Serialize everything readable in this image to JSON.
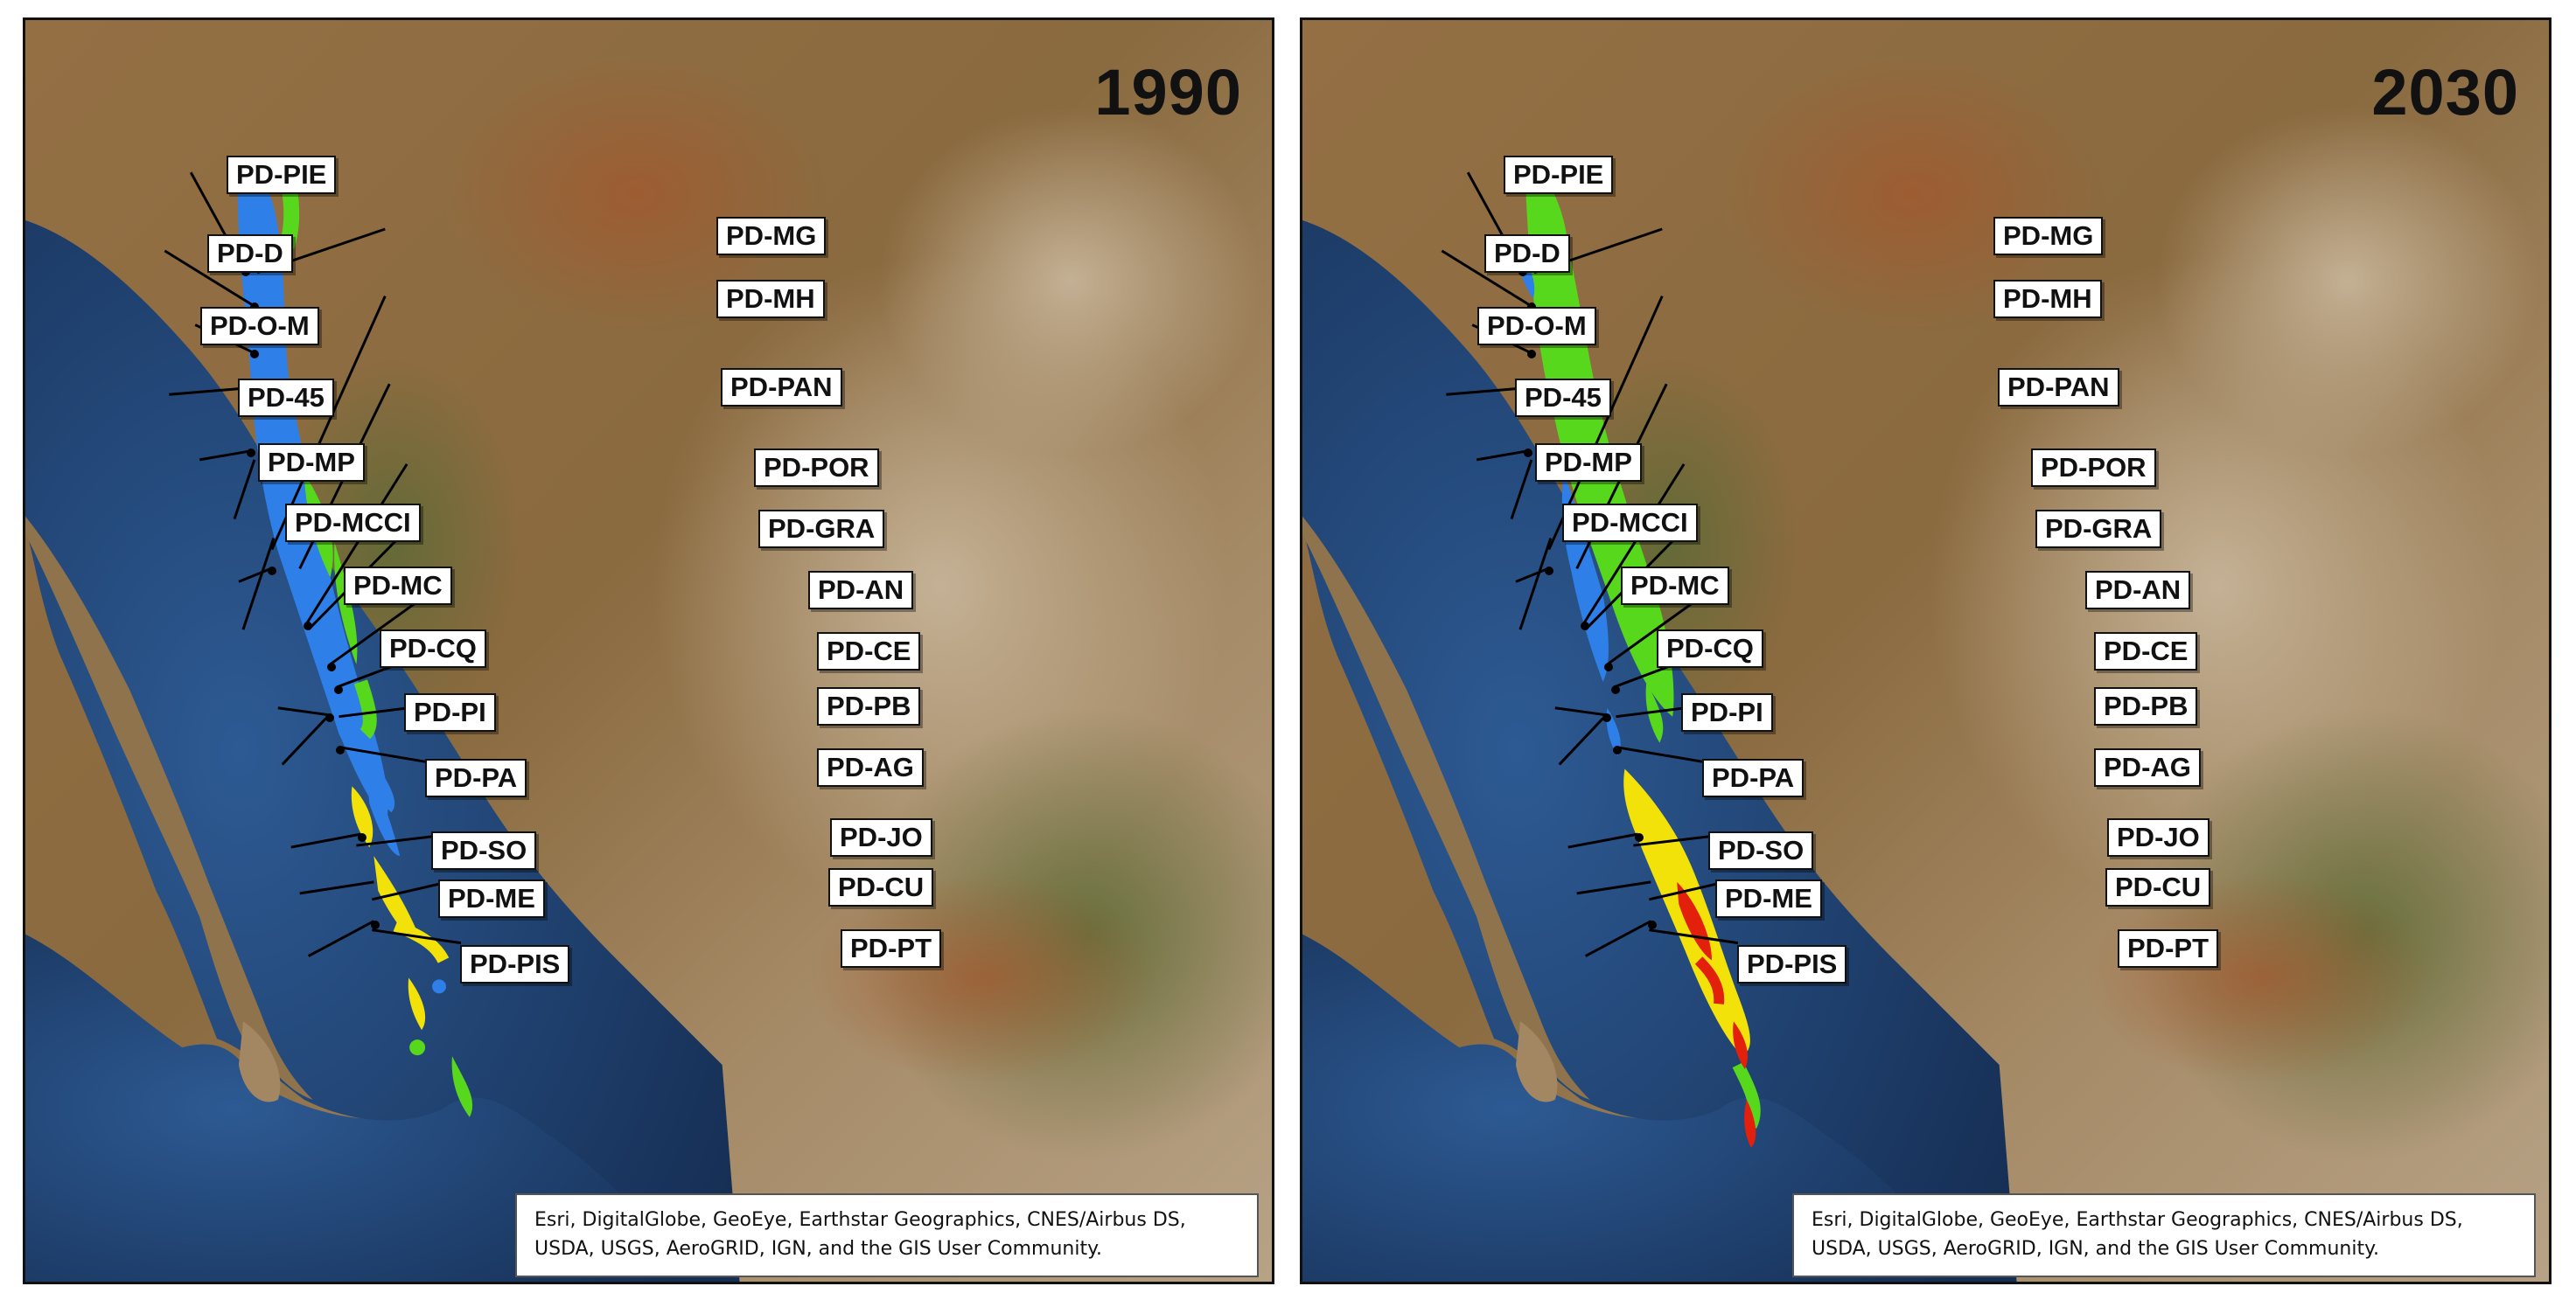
{
  "colors": {
    "ocean": "#1d3c6b",
    "land": "#8a6a40",
    "blue_class": "#2f7fe8",
    "green_class": "#58d81c",
    "yellow_class": "#f2e20a",
    "red_class": "#e3200c",
    "leader_line": "#000000"
  },
  "panels": [
    {
      "year": "1990"
    },
    {
      "year": "2030"
    }
  ],
  "attribution": {
    "line1": "Esri, DigitalGlobe, GeoEye, Earthstar Geographics, CNES/Airbus DS,",
    "line2": "USDA, USGS, AeroGRID, IGN, and the GIS User Community."
  },
  "sites": [
    "PD-PIE",
    "PD-D",
    "PD-O-M",
    "PD-45",
    "PD-MP",
    "PD-MCCI",
    "PD-MC",
    "PD-CQ",
    "PD-PI",
    "PD-PA",
    "PD-SO",
    "PD-ME",
    "PD-PIS",
    "PD-MG",
    "PD-MH",
    "PD-PAN",
    "PD-POR",
    "PD-GRA",
    "PD-AN",
    "PD-CE",
    "PD-PB",
    "PD-AG",
    "PD-JO",
    "PD-CU",
    "PD-PT"
  ]
}
